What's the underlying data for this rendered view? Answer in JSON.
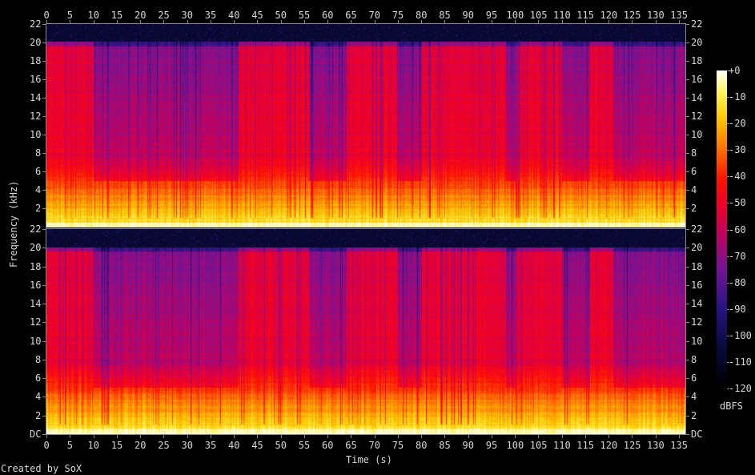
{
  "chart_data": {
    "type": "heatmap",
    "subtype": "spectrogram",
    "xlabel": "Time (s)",
    "ylabel": "Frequency (kHz)",
    "x_ticks": [
      "0",
      "5",
      "10",
      "15",
      "20",
      "25",
      "30",
      "35",
      "40",
      "45",
      "50",
      "55",
      "60",
      "65",
      "70",
      "75",
      "80",
      "85",
      "90",
      "95",
      "100",
      "105",
      "110",
      "115",
      "120",
      "125",
      "130",
      "135"
    ],
    "y_ticks_upper": [
      "2",
      "4",
      "6",
      "8",
      "10",
      "12",
      "14",
      "16",
      "18",
      "20",
      "22"
    ],
    "y_ticks_lower": [
      "DC",
      "2",
      "4",
      "6",
      "8",
      "10",
      "12",
      "14",
      "16",
      "18",
      "20",
      "22"
    ],
    "xlim": [
      0,
      136.4
    ],
    "ylim_khz": [
      0,
      22
    ],
    "channels": 2,
    "colorbar": {
      "label": "dBFS",
      "ticks": [
        "+0",
        "-10",
        "-20",
        "-30",
        "-40",
        "-50",
        "-60",
        "-70",
        "-80",
        "-90",
        "-100",
        "-110",
        "-120"
      ],
      "range": [
        -120,
        0
      ]
    },
    "lowpass_cutoff_khz": 20,
    "full_band_sections_s": [
      [
        0,
        10
      ],
      [
        41,
        56
      ],
      [
        64,
        75
      ],
      [
        80,
        98
      ],
      [
        100,
        110
      ],
      [
        116,
        121
      ]
    ],
    "colors": {
      "background": "#000000",
      "axis": "#888888",
      "text": "#d8d8d8"
    }
  },
  "footer": {
    "credit": "Created by SoX"
  }
}
